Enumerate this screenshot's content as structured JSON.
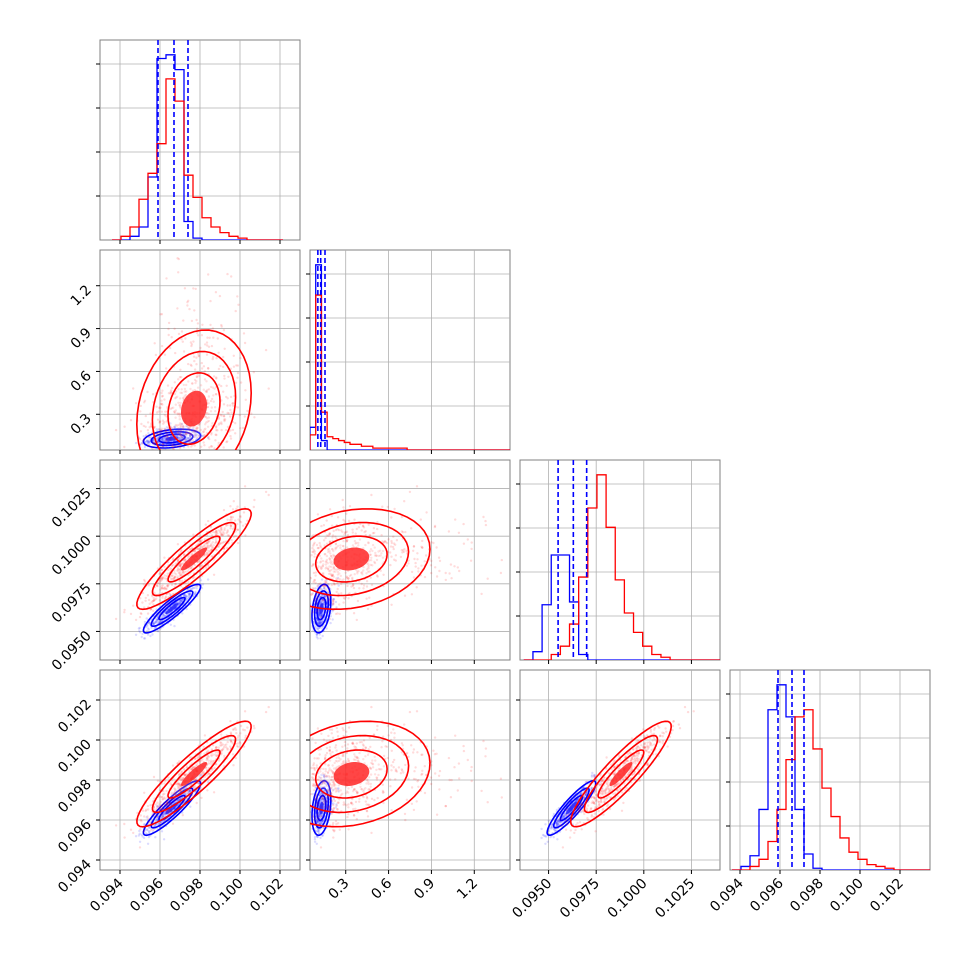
{
  "chart_data": {
    "type": "corner",
    "title": "",
    "colors": {
      "series_a": "#0000ff",
      "series_b": "#ff0000",
      "grid": "#b0b0b0",
      "frame": "#808080"
    },
    "grid": true,
    "series": [
      {
        "color": "#0000ff"
      },
      {
        "color": "#ff0000"
      }
    ],
    "variables": [
      {
        "index": 0,
        "range": [
          0.093,
          0.103
        ],
        "ticks": [
          0.094,
          0.096,
          0.098,
          0.1,
          0.102
        ],
        "tick_labels": [
          "0.094",
          "0.096",
          "0.098",
          "0.100",
          "0.102"
        ]
      },
      {
        "index": 1,
        "range": [
          0.05,
          1.45
        ],
        "ticks": [
          0.3,
          0.6,
          0.9,
          1.2
        ],
        "tick_labels": [
          "0.3",
          "0.6",
          "0.9",
          "1.2"
        ]
      },
      {
        "index": 2,
        "range": [
          0.0935,
          0.104
        ],
        "ticks": [
          0.095,
          0.0975,
          0.1,
          0.1025
        ],
        "tick_labels": [
          "0.0950",
          "0.0975",
          "0.1000",
          "0.1025"
        ]
      },
      {
        "index": 3,
        "range": [
          0.0935,
          0.1035
        ],
        "ticks": [
          0.094,
          0.096,
          0.098,
          0.1,
          0.102
        ],
        "tick_labels": [
          "0.094",
          "0.096",
          "0.098",
          "0.100",
          "0.102"
        ]
      }
    ],
    "quantile_lines": [
      [
        0.0959,
        0.0967,
        0.0974
      ],
      [
        0.105,
        0.125,
        0.155
      ],
      [
        0.0955,
        0.0963,
        0.097
      ],
      [
        0.0959,
        0.0966,
        0.0972
      ]
    ],
    "histograms": [
      {
        "edges_start": 0.0936,
        "bin_width": 0.00045,
        "blue": [
          0,
          0,
          2,
          7,
          34,
          98,
          100,
          92,
          10,
          1,
          0,
          0,
          0,
          0,
          0,
          0,
          0,
          0,
          0
        ],
        "red": [
          0,
          2,
          7,
          22,
          36,
          52,
          87,
          75,
          35,
          23,
          12,
          7,
          4,
          2,
          1,
          0,
          0,
          0,
          0
        ]
      },
      {
        "edges_start": 0.05,
        "bin_width": 0.04,
        "blue": [
          12,
          98,
          5,
          0,
          0,
          0,
          0,
          0,
          0,
          0,
          0,
          0,
          0,
          0,
          0,
          0,
          0,
          0,
          0,
          0,
          0,
          0,
          0,
          0,
          0,
          0,
          0,
          0,
          0,
          0,
          0,
          0,
          0,
          0,
          0
        ],
        "red": [
          8,
          82,
          20,
          7,
          6,
          5,
          4,
          3,
          3,
          2,
          2,
          1,
          1,
          1,
          1,
          1,
          1,
          0,
          0,
          0,
          0,
          0,
          0,
          0,
          0,
          0,
          0,
          0,
          0,
          0,
          0,
          0,
          0,
          0,
          0
        ]
      },
      {
        "edges_start": 0.0937,
        "bin_width": 0.00048,
        "blue": [
          0,
          3,
          20,
          38,
          38,
          21,
          2,
          0,
          0,
          0,
          0,
          0,
          0,
          0,
          0,
          0,
          0,
          0,
          0,
          0,
          0,
          0
        ],
        "red": [
          0,
          0,
          0,
          2,
          5,
          13,
          30,
          55,
          67,
          48,
          29,
          17,
          10,
          5,
          2,
          1,
          0,
          0,
          0,
          0,
          0,
          0
        ]
      },
      {
        "edges_start": 0.0936,
        "bin_width": 0.00045,
        "blue": [
          0,
          2,
          8,
          34,
          90,
          104,
          86,
          34,
          9,
          1,
          0,
          0,
          0,
          0,
          0,
          0,
          0,
          0,
          0,
          0,
          0,
          0
        ],
        "red": [
          0,
          0,
          2,
          6,
          16,
          34,
          62,
          86,
          90,
          68,
          46,
          30,
          18,
          10,
          6,
          3,
          2,
          1,
          0,
          0,
          0,
          0
        ]
      }
    ],
    "populations": [
      {
        "color": "#0000ff",
        "count": 520,
        "mean": [
          0.0966,
          0.13,
          0.0962,
          0.0966
        ],
        "sd": [
          0.00065,
          0.03,
          0.00058,
          0.00062
        ],
        "corr": [
          [
            1,
            0.3,
            0.9,
            0.9
          ],
          [
            0.3,
            1,
            0.3,
            0.3
          ],
          [
            0.9,
            0.3,
            1,
            0.9
          ],
          [
            0.9,
            0.3,
            0.9,
            1
          ]
        ]
      },
      {
        "color": "#ff0000",
        "count": 620,
        "mean": [
          0.0977,
          0.34,
          0.0988,
          0.0983
        ],
        "sd": [
          0.0013,
          0.25,
          0.0012,
          0.0012
        ],
        "corr": [
          [
            1,
            0.2,
            0.9,
            0.9
          ],
          [
            0.2,
            1,
            0.2,
            0.2
          ],
          [
            0.9,
            0.2,
            1,
            0.9
          ],
          [
            0.9,
            0.2,
            0.9,
            1
          ]
        ]
      }
    ]
  }
}
